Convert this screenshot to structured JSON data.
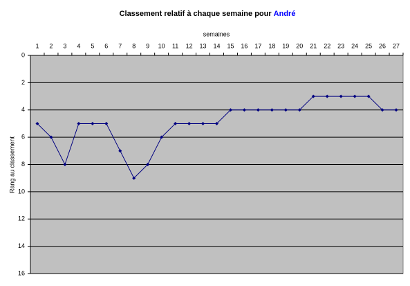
{
  "chart_data": {
    "type": "line",
    "title": "Classement relatif à chaque semaine pour",
    "title_highlight": "André",
    "x_label": "semaines",
    "y_label": "Rang au classement",
    "categories": [
      "1",
      "2",
      "3",
      "4",
      "5",
      "6",
      "7",
      "8",
      "9",
      "10",
      "11",
      "12",
      "13",
      "14",
      "15",
      "16",
      "17",
      "18",
      "19",
      "20",
      "21",
      "22",
      "23",
      "24",
      "25",
      "26",
      "27"
    ],
    "series": [
      {
        "color": "#000080",
        "values": [
          5,
          6,
          8,
          5,
          5,
          5,
          7,
          9,
          8,
          6,
          5,
          5,
          5,
          5,
          4,
          4,
          4,
          4,
          4,
          4,
          3,
          3,
          3,
          3,
          3,
          4,
          4
        ]
      }
    ],
    "ylim": [
      0,
      16
    ],
    "yticks": [
      0,
      2,
      4,
      6,
      8,
      10,
      12,
      14,
      16
    ],
    "y_inverted": true,
    "grid": true,
    "plot_color": "#c0c0c0",
    "highlight_color": "#0000ff"
  }
}
